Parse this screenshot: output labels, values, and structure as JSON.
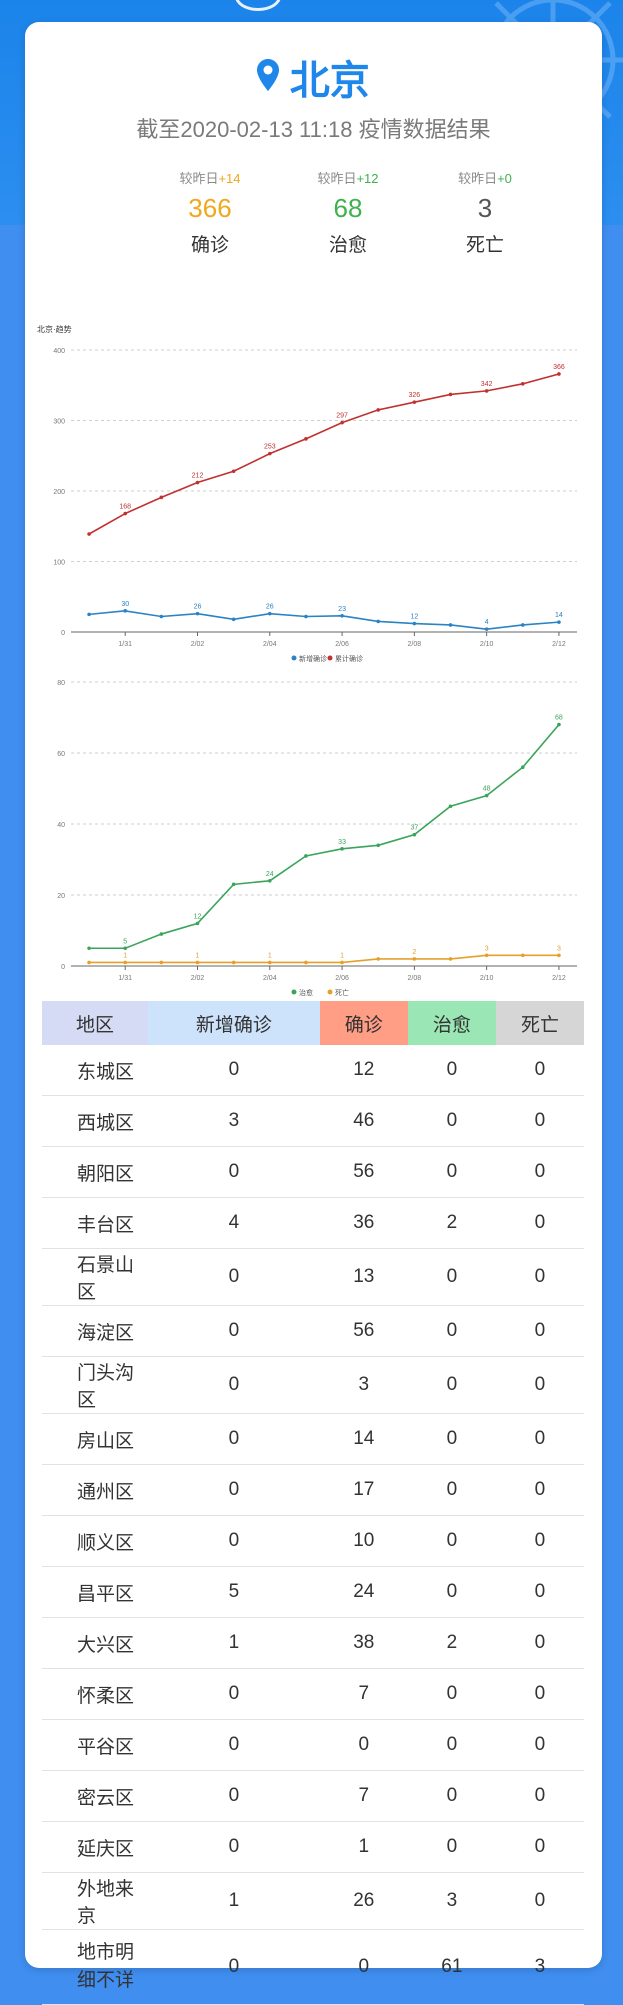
{
  "header": {
    "city": "北京",
    "subtitle": "截至2020-02-13 11:18 疫情数据结果"
  },
  "stats": [
    {
      "delta_prefix": "较昨日",
      "delta_value": "+14",
      "value": "366",
      "label": "确诊",
      "color": "#f0a81c"
    },
    {
      "delta_prefix": "较昨日",
      "delta_value": "+12",
      "value": "68",
      "label": "治愈",
      "color": "#3fb14e"
    },
    {
      "delta_prefix": "较昨日",
      "delta_value": "+0",
      "value": "3",
      "label": "死亡",
      "color": "#555555"
    }
  ],
  "chart_data": [
    {
      "type": "line",
      "title": "北京·趋势",
      "x_count": 14,
      "xticks": [
        "1/31",
        "2/02",
        "2/04",
        "2/06",
        "2/08",
        "2/10",
        "2/12"
      ],
      "ylim": [
        0,
        400
      ],
      "yticks": [
        "0",
        "100",
        "200",
        "300",
        "400"
      ],
      "series": [
        {
          "name": "新增确诊",
          "color": "#2b82c4",
          "values": [
            25,
            30,
            22,
            26,
            18,
            26,
            22,
            23,
            15,
            12,
            10,
            4,
            10,
            14
          ],
          "labels": [
            null,
            "30",
            null,
            "26",
            null,
            "26",
            null,
            "23",
            null,
            "12",
            null,
            "4",
            null,
            "14"
          ]
        },
        {
          "name": "累计确诊",
          "color": "#c0312f",
          "values": [
            139,
            168,
            191,
            212,
            228,
            253,
            274,
            297,
            315,
            326,
            337,
            342,
            352,
            366
          ],
          "labels": [
            null,
            "168",
            null,
            "212",
            null,
            "253",
            null,
            "297",
            null,
            "326",
            null,
            "342",
            null,
            "366"
          ]
        }
      ]
    },
    {
      "type": "line",
      "x_count": 14,
      "xticks": [
        "1/31",
        "2/02",
        "2/04",
        "2/06",
        "2/08",
        "2/10",
        "2/12"
      ],
      "ylim": [
        0,
        80
      ],
      "yticks": [
        "0",
        "20",
        "40",
        "60",
        "80"
      ],
      "series": [
        {
          "name": "治愈",
          "color": "#3aa55a",
          "values": [
            5,
            5,
            9,
            12,
            23,
            24,
            31,
            33,
            34,
            37,
            45,
            48,
            56,
            68
          ],
          "labels": [
            null,
            "5",
            null,
            "12",
            null,
            "24",
            null,
            "33",
            null,
            "37",
            null,
            "48",
            null,
            "68"
          ]
        },
        {
          "name": "死亡",
          "color": "#e6a02a",
          "values": [
            1,
            1,
            1,
            1,
            1,
            1,
            1,
            1,
            2,
            2,
            2,
            3,
            3,
            3
          ],
          "labels": [
            null,
            "1",
            null,
            "1",
            null,
            "1",
            null,
            "1",
            null,
            "2",
            null,
            "3",
            null,
            "3"
          ]
        }
      ]
    }
  ],
  "table": {
    "headers": [
      "地区",
      "新增确诊",
      "确诊",
      "治愈",
      "死亡"
    ],
    "header_colors": [
      "#d5dbf5",
      "#cde2fb",
      "#ff9d85",
      "#9ae6b4",
      "#d6d6d6"
    ],
    "rows": [
      [
        "东城区",
        "0",
        "12",
        "0",
        "0"
      ],
      [
        "西城区",
        "3",
        "46",
        "0",
        "0"
      ],
      [
        "朝阳区",
        "0",
        "56",
        "0",
        "0"
      ],
      [
        "丰台区",
        "4",
        "36",
        "2",
        "0"
      ],
      [
        "石景山区",
        "0",
        "13",
        "0",
        "0"
      ],
      [
        "海淀区",
        "0",
        "56",
        "0",
        "0"
      ],
      [
        "门头沟区",
        "0",
        "3",
        "0",
        "0"
      ],
      [
        "房山区",
        "0",
        "14",
        "0",
        "0"
      ],
      [
        "通州区",
        "0",
        "17",
        "0",
        "0"
      ],
      [
        "顺义区",
        "0",
        "10",
        "0",
        "0"
      ],
      [
        "昌平区",
        "5",
        "24",
        "0",
        "0"
      ],
      [
        "大兴区",
        "1",
        "38",
        "2",
        "0"
      ],
      [
        "怀柔区",
        "0",
        "7",
        "0",
        "0"
      ],
      [
        "平谷区",
        "0",
        "0",
        "0",
        "0"
      ],
      [
        "密云区",
        "0",
        "7",
        "0",
        "0"
      ],
      [
        "延庆区",
        "0",
        "1",
        "0",
        "0"
      ],
      [
        "外地来京",
        "1",
        "26",
        "3",
        "0"
      ],
      [
        "地市明细不详",
        "0",
        "0",
        "61",
        "3"
      ]
    ]
  },
  "icons": {
    "title": "location-pin-icon"
  }
}
